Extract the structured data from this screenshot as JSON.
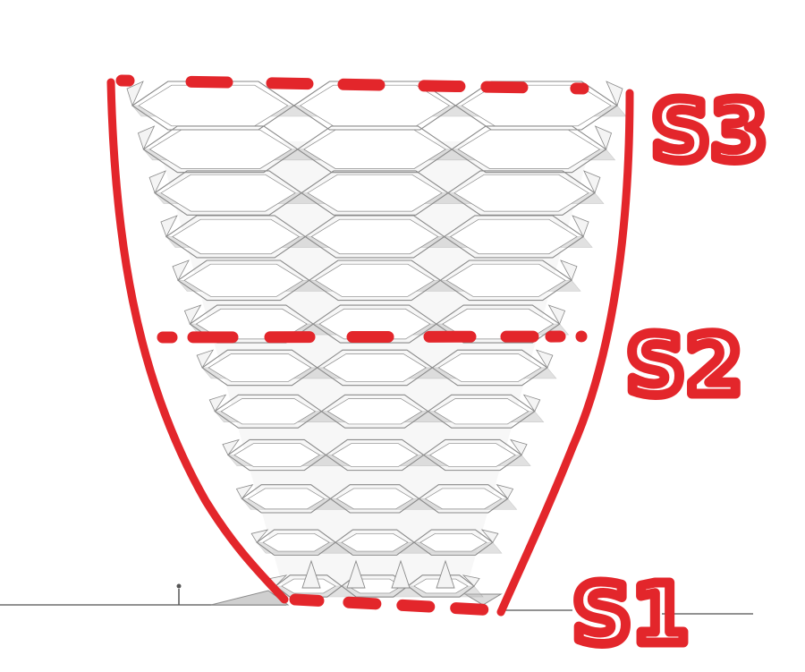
{
  "colors": {
    "annotation": "#e3262b",
    "structure_fill": "#f4f4f4",
    "structure_stroke": "#8a8a8a",
    "structure_shadow": "#bdbdbd",
    "ground": "#6f6f6f",
    "background": "#ffffff"
  },
  "sections": [
    {
      "label": "S3",
      "level": "top"
    },
    {
      "label": "S2",
      "level": "middle"
    },
    {
      "label": "S1",
      "level": "base"
    }
  ],
  "structure": {
    "floor_count": 12,
    "cells_per_row": 3,
    "cell_shape": "hexagon"
  }
}
